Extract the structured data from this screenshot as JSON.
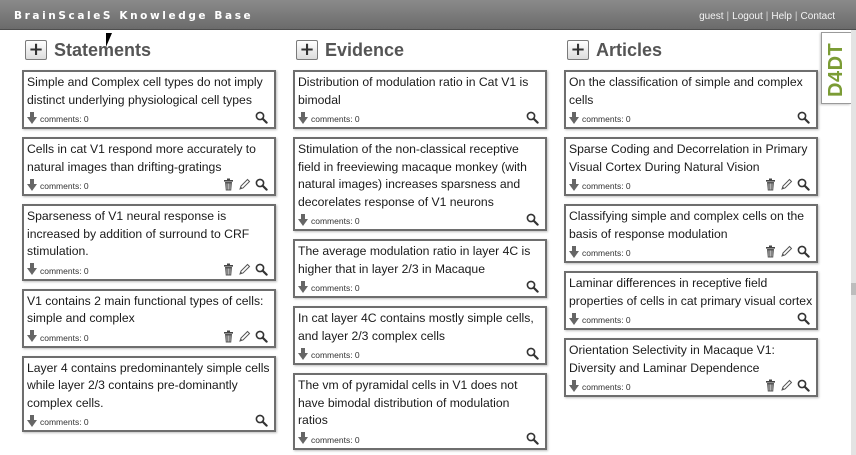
{
  "app": {
    "title": "BrainScaleS Knowledge Base"
  },
  "header": {
    "links": [
      "guest",
      "Logout",
      "Help",
      "Contact"
    ]
  },
  "side_tab": {
    "label": "D4DT"
  },
  "add_label": "+",
  "columns": [
    {
      "title": "Statements",
      "cards": [
        {
          "text": "Simple and Complex cell types do not imply distinct underlying physiological cell types",
          "comments": "comments: 0",
          "editable": false
        },
        {
          "text": "Cells in cat V1 respond more accurately to natural images than drifting-gratings",
          "comments": "comments: 0",
          "editable": true
        },
        {
          "text": "Sparseness of V1 neural response is increased by addition of surround to CRF stimulation.",
          "comments": "comments: 0",
          "editable": true
        },
        {
          "text": "V1 contains 2 main functional types of cells: simple and complex",
          "comments": "comments: 0",
          "editable": true
        },
        {
          "text": "Layer 4 contains predominantely simple cells while layer 2/3 contains pre-dominantly complex cells.",
          "comments": "comments: 0",
          "editable": false
        }
      ]
    },
    {
      "title": "Evidence",
      "cards": [
        {
          "text": "Distribution of modulation ratio in Cat V1 is bimodal",
          "comments": "comments: 0",
          "editable": false
        },
        {
          "text": "Stimulation of the non-classical receptive field in freeviewing macaque monkey (with natural images) increases sparsness and decorelates response of V1 neurons",
          "comments": "comments: 0",
          "editable": false
        },
        {
          "text": "The average modulation ratio in layer 4C is higher that in layer 2/3 in Macaque",
          "comments": "comments: 0",
          "editable": false
        },
        {
          "text": "In cat layer 4C contains mostly simple cells, and layer 2/3 complex cells",
          "comments": "comments: 0",
          "editable": false
        },
        {
          "text": "The vm of pyramidal cells in V1 does not have bimodal distribution of modulation ratios",
          "comments": "comments: 0",
          "editable": false
        }
      ]
    },
    {
      "title": "Articles",
      "cards": [
        {
          "text": "On the classification of simple and complex cells",
          "comments": "comments: 0",
          "editable": false
        },
        {
          "text": "Sparse Coding and Decorrelation in Primary Visual Cortex During Natural Vision",
          "comments": "comments: 0",
          "editable": true
        },
        {
          "text": "Classifying simple and complex cells on the basis of response modulation",
          "comments": "comments: 0",
          "editable": true
        },
        {
          "text": "Laminar differences in receptive field properties of cells in cat primary visual cortex",
          "comments": "comments: 0",
          "editable": false
        },
        {
          "text": "Orientation Selectivity in Macaque V1: Diversity and Laminar Dependence",
          "comments": "comments: 0",
          "editable": true
        }
      ]
    }
  ]
}
